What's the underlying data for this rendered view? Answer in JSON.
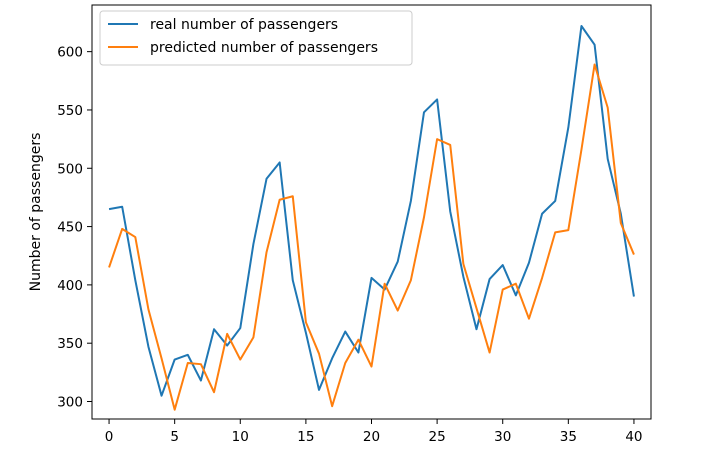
{
  "chart_data": {
    "type": "line",
    "title": "",
    "xlabel": "",
    "ylabel": "Number of passengers",
    "xlim": [
      -1.3,
      41.3
    ],
    "ylim": [
      285,
      640
    ],
    "xticks": [
      0,
      5,
      10,
      15,
      20,
      25,
      30,
      35,
      40
    ],
    "yticks": [
      300,
      350,
      400,
      450,
      500,
      550,
      600
    ],
    "grid": false,
    "legend_position": "top-left",
    "x": [
      0,
      1,
      2,
      3,
      4,
      5,
      6,
      7,
      8,
      9,
      10,
      11,
      12,
      13,
      14,
      15,
      16,
      17,
      18,
      19,
      20,
      21,
      22,
      23,
      24,
      25,
      26,
      27,
      28,
      29,
      30,
      31,
      32,
      33,
      34,
      35,
      36,
      37,
      38,
      39,
      40
    ],
    "series": [
      {
        "name": "real number of passengers",
        "color": "#1f77b4",
        "values": [
          465,
          467,
          404,
          347,
          305,
          336,
          340,
          318,
          362,
          348,
          363,
          435,
          491,
          505,
          404,
          359,
          310,
          337,
          360,
          342,
          406,
          396,
          420,
          472,
          548,
          559,
          463,
          407,
          362,
          405,
          417,
          391,
          419,
          461,
          472,
          535,
          622,
          606,
          508,
          461,
          390
        ]
      },
      {
        "name": "predicted number of passengers",
        "color": "#ff7f0e",
        "values": [
          415,
          448,
          441,
          379,
          337,
          293,
          333,
          332,
          308,
          358,
          336,
          355,
          428,
          473,
          476,
          368,
          341,
          296,
          333,
          353,
          330,
          401,
          378,
          404,
          458,
          525,
          520,
          418,
          380,
          342,
          396,
          401,
          371,
          406,
          445,
          447,
          516,
          589,
          552,
          453,
          426
        ]
      }
    ]
  }
}
